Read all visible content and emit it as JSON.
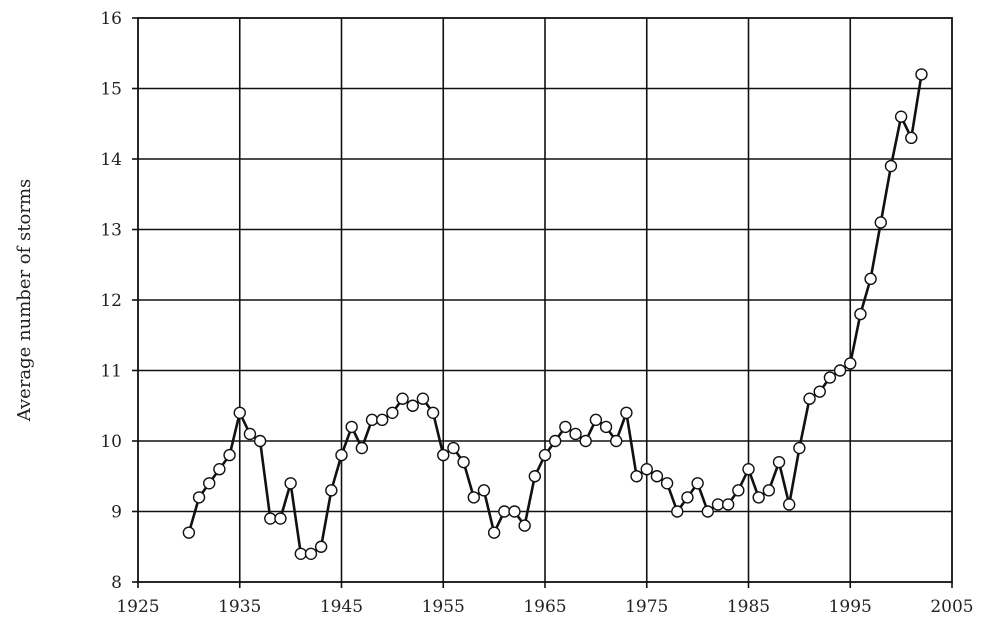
{
  "chart_data": {
    "type": "line",
    "title": "",
    "xlabel": "",
    "ylabel": "Average number of storms",
    "xlim": [
      1925,
      2005
    ],
    "ylim": [
      8,
      16
    ],
    "xticks": [
      1925,
      1935,
      1945,
      1955,
      1965,
      1975,
      1985,
      1995,
      2005
    ],
    "yticks": [
      8,
      9,
      10,
      11,
      12,
      13,
      14,
      15,
      16
    ],
    "grid": true,
    "series": [
      {
        "x": [
          1930,
          1931,
          1932,
          1933,
          1934,
          1935,
          1936,
          1937,
          1938,
          1939,
          1940,
          1941,
          1942,
          1943,
          1944,
          1945,
          1946,
          1947,
          1948,
          1949,
          1950,
          1951,
          1952,
          1953,
          1954,
          1955,
          1956,
          1957,
          1958,
          1959,
          1960,
          1961,
          1962,
          1963,
          1964,
          1965,
          1966,
          1967,
          1968,
          1969,
          1970,
          1971,
          1972,
          1973,
          1974,
          1975,
          1976,
          1977,
          1978,
          1979,
          1980,
          1981,
          1982,
          1983,
          1984,
          1985,
          1986,
          1987,
          1988,
          1989,
          1990,
          1991,
          1992,
          1993,
          1994,
          1995,
          1996,
          1997,
          1998,
          1999,
          2000,
          2001,
          2002
        ],
        "values": [
          8.7,
          9.2,
          9.4,
          9.6,
          9.8,
          10.4,
          10.1,
          10.0,
          8.9,
          8.9,
          9.4,
          8.4,
          8.4,
          8.5,
          9.3,
          9.8,
          10.2,
          9.9,
          10.3,
          10.3,
          10.4,
          10.6,
          10.5,
          10.6,
          10.4,
          9.8,
          9.9,
          9.7,
          9.2,
          9.3,
          8.7,
          9.0,
          9.0,
          8.8,
          9.5,
          9.8,
          10.0,
          10.2,
          10.1,
          10.0,
          10.3,
          10.2,
          10.0,
          10.4,
          9.5,
          9.6,
          9.5,
          9.4,
          9.0,
          9.2,
          9.4,
          9.0,
          9.1,
          9.1,
          9.3,
          9.6,
          9.2,
          9.3,
          9.7,
          9.1,
          9.9,
          10.6,
          10.7,
          10.9,
          11.0,
          11.1,
          11.8,
          12.3,
          13.1,
          13.9,
          14.6,
          14.3,
          15.2
        ]
      }
    ],
    "colors": {
      "line": "#111111",
      "marker_fill": "#ffffff",
      "grid": "#111111"
    }
  }
}
